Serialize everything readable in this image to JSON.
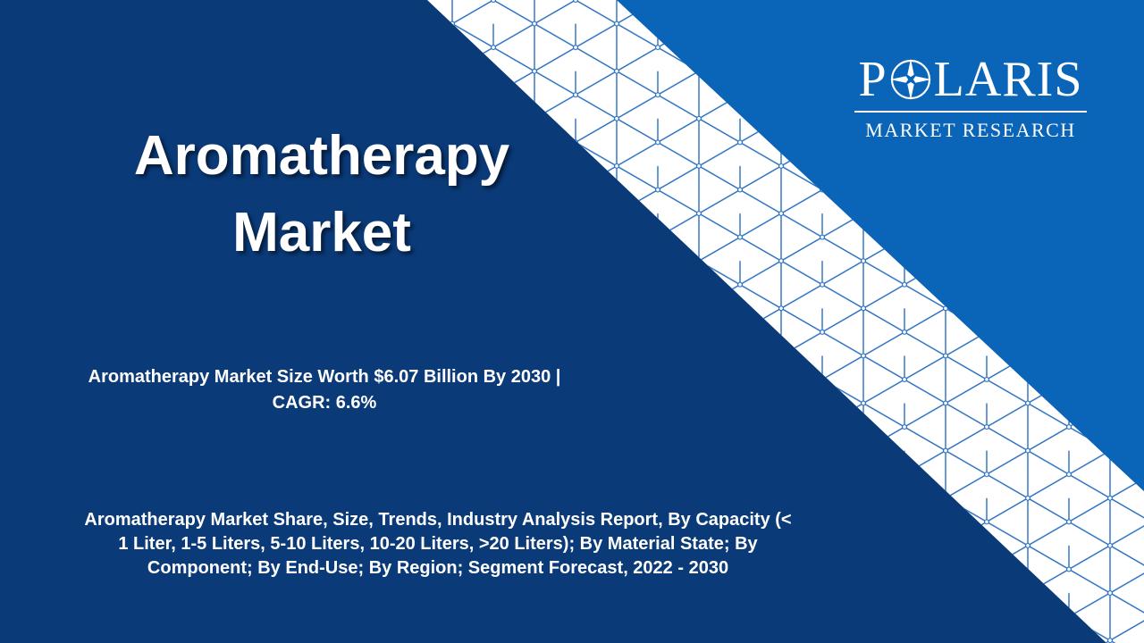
{
  "slide": {
    "title_line1": "Aromatherapy",
    "title_line2": "Market",
    "headline_line1": "Aromatherapy Market Size Worth $6.07 Billion By 2030 |",
    "headline_line2": "CAGR: 6.6%",
    "description_line1": "Aromatherapy Market Share, Size, Trends, Industry Analysis Report, By Capacity (<",
    "description_line2": "1 Liter, 1-5 Liters, 5-10 Liters, 10-20 Liters, >20 Liters); By Material State; By",
    "description_line3": "Component; By End-Use; By Region; Segment Forecast, 2022 - 2030"
  },
  "logo": {
    "letter_p": "P",
    "letters_rest": "LARIS",
    "subtitle": "MARKET RESEARCH",
    "star_icon": "compass-star-icon"
  },
  "colors": {
    "background_dark_blue": "#0a3a78",
    "corner_bright_blue": "#0a64b8",
    "pattern_band": "#ffffff",
    "pattern_lines": "#2a6fc0",
    "text": "#ffffff"
  }
}
